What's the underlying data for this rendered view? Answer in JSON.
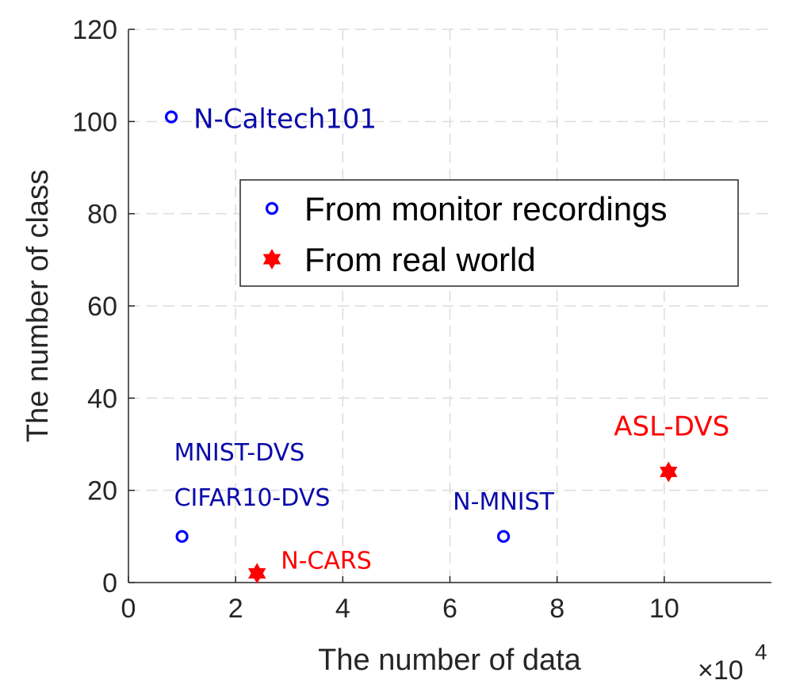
{
  "chart_data": {
    "type": "scatter",
    "title": "",
    "xlabel": "The number of data",
    "ylabel": "The number of class",
    "x_exponent_label": "×10",
    "x_exponent_power": "4",
    "xlim": [
      0,
      12
    ],
    "ylim": [
      0,
      120
    ],
    "x_ticks": [
      0,
      2,
      4,
      6,
      8,
      10
    ],
    "y_ticks": [
      0,
      20,
      40,
      60,
      80,
      100,
      120
    ],
    "x_tick_labels": [
      "0",
      "2",
      "4",
      "6",
      "8",
      "10"
    ],
    "y_tick_labels": [
      "0",
      "20",
      "40",
      "60",
      "80",
      "100",
      "120"
    ],
    "grid": true,
    "legend_position": "center-right",
    "series": [
      {
        "name": "From monitor recordings",
        "marker": "circle",
        "color": "#0000FF",
        "label_color": "#0A0AAA",
        "points": [
          {
            "x": 0.8,
            "y": 101,
            "label": "N-Caltech101"
          },
          {
            "x": 1.0,
            "y": 10,
            "label": "MNIST-DVS"
          },
          {
            "x": 1.0,
            "y": 10,
            "label": "CIFAR10-DVS"
          },
          {
            "x": 7.0,
            "y": 10,
            "label": "N-MNIST"
          }
        ]
      },
      {
        "name": "From real world",
        "marker": "hexagram",
        "color": "#FF0000",
        "label_color": "#FF0000",
        "points": [
          {
            "x": 2.4,
            "y": 2,
            "label": "N-CARS"
          },
          {
            "x": 10.08,
            "y": 24,
            "label": "ASL-DVS"
          }
        ]
      }
    ]
  }
}
